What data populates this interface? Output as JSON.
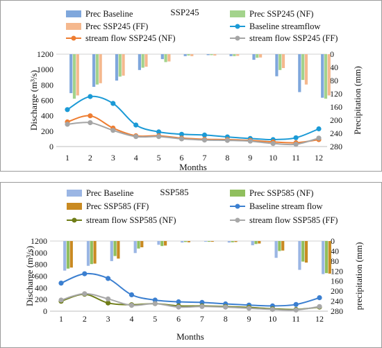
{
  "chart_data": [
    {
      "type": "bar+line",
      "title": "SSP245",
      "xlabel": "Months",
      "ylabel": "Discharge (m³/s)",
      "y2label": "Precipitation (mm)",
      "x": [
        1,
        2,
        3,
        4,
        5,
        6,
        7,
        8,
        9,
        10,
        11,
        12
      ],
      "xticks": [
        "1",
        "2",
        "3",
        "4",
        "5",
        "6",
        "7",
        "8",
        "9",
        "10",
        "11",
        "12"
      ],
      "ylim": [
        0,
        1200
      ],
      "yticks": [
        "0",
        "200",
        "400",
        "600",
        "800",
        "1000",
        "1200"
      ],
      "y2lim": [
        0,
        280
      ],
      "y2reversed": true,
      "y2ticks": [
        "0",
        "40",
        "80",
        "120",
        "160",
        "200",
        "240",
        "280"
      ],
      "legend_position": "top",
      "bars": [
        {
          "name": "Prec Baseline",
          "color": "#7fa7dc",
          "values": [
            118,
            99,
            80,
            48,
            15,
            6,
            3,
            6,
            17,
            67,
            115,
            132
          ]
        },
        {
          "name": "Prec SSP245 (NF)",
          "color": "#a3d38c",
          "values": [
            135,
            92,
            68,
            41,
            24,
            4,
            3,
            6,
            11,
            48,
            78,
            135
          ]
        },
        {
          "name": "Prec SSP245 (FF)",
          "color": "#f5b88e",
          "values": [
            125,
            88,
            65,
            38,
            22,
            6,
            4,
            5,
            10,
            42,
            92,
            125
          ]
        }
      ],
      "lines": [
        {
          "name": "Baseline streamflow",
          "color": "#1b9ad6",
          "values": [
            480,
            650,
            560,
            280,
            190,
            160,
            150,
            125,
            105,
            90,
            115,
            230
          ]
        },
        {
          "name": "stream flow SSP245 (NF)",
          "color": "#ee7d31",
          "values": [
            320,
            400,
            240,
            140,
            140,
            110,
            95,
            90,
            80,
            60,
            50,
            90
          ]
        },
        {
          "name": "stream flow SSP245 (FF)",
          "color": "#a5a5a5",
          "values": [
            290,
            310,
            210,
            130,
            130,
            100,
            85,
            80,
            70,
            40,
            30,
            110
          ]
        }
      ]
    },
    {
      "type": "bar+line",
      "title": "SSP585",
      "xlabel": "Months",
      "ylabel": "Discharge (m³/s)",
      "y2label": "precipitation (mm)",
      "x": [
        1,
        2,
        3,
        4,
        5,
        6,
        7,
        8,
        9,
        10,
        11,
        12
      ],
      "xticks": [
        "1",
        "2",
        "3",
        "4",
        "5",
        "6",
        "7",
        "8",
        "9",
        "10",
        "11",
        "12"
      ],
      "ylim": [
        0,
        1200
      ],
      "yticks": [
        "0",
        "200",
        "400",
        "600",
        "800",
        "1000",
        "1200"
      ],
      "y2lim": [
        0,
        280
      ],
      "y2reversed": true,
      "y2ticks": [
        "0",
        "40",
        "80",
        "120",
        "160",
        "200",
        "240",
        "280"
      ],
      "legend_position": "top",
      "bars": [
        {
          "name": "Prec Baseline",
          "color": "#9bb6e4",
          "values": [
            118,
            99,
            80,
            48,
            15,
            6,
            3,
            6,
            17,
            67,
            115,
            132
          ]
        },
        {
          "name": "Prec SSP585 (NF)",
          "color": "#90bf5e",
          "values": [
            110,
            92,
            60,
            30,
            20,
            4,
            3,
            5,
            12,
            40,
            82,
            128
          ]
        },
        {
          "name": "Prec SSP585 (FF)",
          "color": "#c98a22",
          "values": [
            106,
            90,
            70,
            25,
            18,
            5,
            3,
            4,
            10,
            38,
            86,
            130
          ]
        }
      ],
      "lines": [
        {
          "name": "Baseline stream flow",
          "color": "#3b7fd0",
          "values": [
            480,
            640,
            560,
            280,
            190,
            160,
            150,
            125,
            105,
            90,
            115,
            230
          ]
        },
        {
          "name": "stream flow SSP585 (NF)",
          "color": "#6f7d17",
          "values": [
            170,
            290,
            140,
            110,
            130,
            90,
            90,
            80,
            65,
            40,
            30,
            70
          ]
        },
        {
          "name": "stream flow SSP585 (FF)",
          "color": "#a8a8a8",
          "values": [
            190,
            300,
            210,
            100,
            130,
            70,
            80,
            70,
            50,
            30,
            20,
            80
          ]
        }
      ]
    }
  ]
}
